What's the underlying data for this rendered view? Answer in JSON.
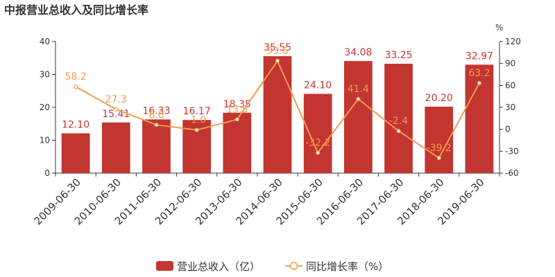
{
  "chart_data": {
    "type": "bar",
    "title": "中报营业总收入及同比增长率",
    "categories": [
      "2009-06-30",
      "2010-06-30",
      "2011-06-30",
      "2012-06-30",
      "2013-06-30",
      "2014-06-30",
      "2015-06-30",
      "2016-06-30",
      "2017-06-30",
      "2018-06-30",
      "2019-06-30"
    ],
    "series": [
      {
        "name": "营业总收入（亿）",
        "type": "bar",
        "axis": "left",
        "values": [
          12.1,
          15.41,
          16.33,
          16.17,
          18.35,
          35.55,
          24.1,
          34.08,
          33.25,
          20.2,
          32.97
        ],
        "labels": [
          "12.10",
          "15.41",
          "16.33",
          "16.17",
          "18.35",
          "35.55",
          "24.10",
          "34.08",
          "33.25",
          "20.20",
          "32.97"
        ]
      },
      {
        "name": "同比增长率（%）",
        "type": "line",
        "axis": "right",
        "values": [
          58.2,
          27.3,
          6.0,
          -1.0,
          13.5,
          93.6,
          -32.2,
          41.4,
          -2.4,
          -39.2,
          63.2
        ],
        "labels": [
          "58.2",
          "27.3",
          "6.0",
          "-1.0",
          "13.5",
          "93.6",
          "-32.2",
          "41.4",
          "-2.4",
          "-39.2",
          "63.2"
        ]
      }
    ],
    "y_left": {
      "min": 0,
      "max": 40,
      "ticks": [
        "0",
        "10",
        "20",
        "30",
        "40"
      ]
    },
    "y_right": {
      "min": -60,
      "max": 120,
      "ticks": [
        "-60",
        "-30",
        "0",
        "30",
        "60",
        "90",
        "120"
      ],
      "unit": "%"
    },
    "colors": {
      "bar": "#c23531",
      "line": "#f29a49",
      "axis": "#333333"
    },
    "grid": false,
    "legend_position": "bottom-center"
  }
}
